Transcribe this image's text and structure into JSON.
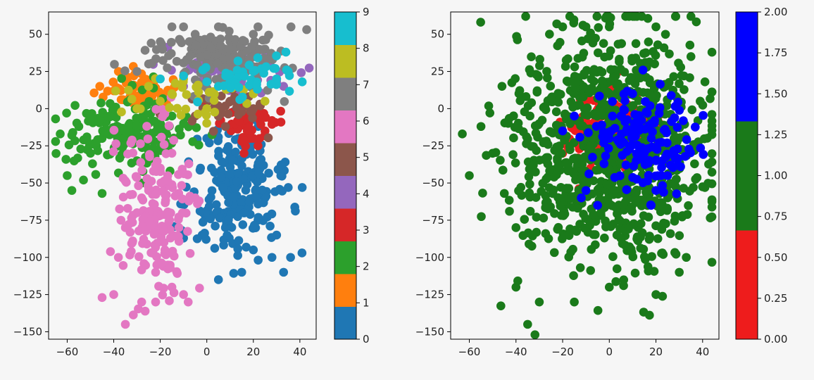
{
  "chart_data": [
    {
      "type": "scatter",
      "title": "",
      "xlabel": "",
      "ylabel": "",
      "xlim": [
        -68,
        47
      ],
      "ylim": [
        -155,
        65
      ],
      "x_ticks": [
        -60,
        -40,
        -20,
        0,
        20,
        40
      ],
      "y_ticks": [
        50,
        25,
        0,
        -25,
        -50,
        -75,
        -100,
        -125,
        -150
      ],
      "grid": false,
      "color_by": "cluster label",
      "colorbar": {
        "range": [
          0,
          9
        ],
        "ticks": [
          0,
          1,
          2,
          3,
          4,
          5,
          6,
          7,
          8,
          9
        ],
        "colors": [
          "#1f77b4",
          "#ff7f0e",
          "#2ca02c",
          "#d62728",
          "#9467bd",
          "#8c564b",
          "#e377c2",
          "#7f7f7f",
          "#bcbd22",
          "#17becf"
        ]
      },
      "series": [
        {
          "label": 0,
          "color": "#1f77b4",
          "center": [
            12,
            -55
          ],
          "spread": [
            10,
            22
          ],
          "approx_points": 230,
          "sample_points": [
            [
              0,
              -20
            ],
            [
              10,
              -30
            ],
            [
              20,
              -45
            ],
            [
              25,
              -60
            ],
            [
              35,
              -53
            ],
            [
              41,
              -53
            ],
            [
              30,
              -85
            ],
            [
              20,
              -95
            ],
            [
              15,
              -110
            ],
            [
              5,
              -115
            ],
            [
              8,
              -80
            ],
            [
              -2,
              -85
            ],
            [
              -10,
              -87
            ],
            [
              -5,
              -60
            ],
            [
              2,
              -40
            ],
            [
              10,
              -70
            ],
            [
              22,
              -75
            ],
            [
              28,
              -100
            ],
            [
              36,
              -100
            ],
            [
              33,
              -110
            ]
          ]
        },
        {
          "label": 1,
          "color": "#ff7f0e",
          "center": [
            -30,
            12
          ],
          "spread": [
            8,
            6
          ],
          "approx_points": 70,
          "sample_points": [
            [
              -46,
              15
            ],
            [
              -40,
              12
            ],
            [
              -35,
              20
            ],
            [
              -30,
              15
            ],
            [
              -25,
              10
            ],
            [
              -38,
              25
            ],
            [
              -20,
              5
            ],
            [
              -28,
              3
            ],
            [
              -33,
              8
            ],
            [
              -22,
              14
            ]
          ]
        },
        {
          "label": 2,
          "color": "#2ca02c",
          "center": [
            -35,
            -15
          ],
          "spread": [
            14,
            12
          ],
          "approx_points": 180,
          "sample_points": [
            [
              -63,
              -17
            ],
            [
              -55,
              -12
            ],
            [
              -60,
              -45
            ],
            [
              -50,
              -30
            ],
            [
              -45,
              -20
            ],
            [
              -40,
              -5
            ],
            [
              -35,
              -20
            ],
            [
              -30,
              -35
            ],
            [
              -25,
              -10
            ],
            [
              -20,
              -15
            ],
            [
              -15,
              -5
            ],
            [
              -10,
              -10
            ],
            [
              -53,
              -48
            ],
            [
              -58,
              -55
            ],
            [
              -45,
              -57
            ],
            [
              -38,
              -25
            ],
            [
              -28,
              -50
            ],
            [
              -22,
              0
            ]
          ]
        },
        {
          "label": 3,
          "color": "#d62728",
          "center": [
            18,
            -10
          ],
          "spread": [
            6,
            8
          ],
          "approx_points": 60,
          "sample_points": [
            [
              15,
              -5
            ],
            [
              20,
              -20
            ],
            [
              25,
              -15
            ],
            [
              18,
              -10
            ],
            [
              22,
              -25
            ],
            [
              12,
              -12
            ],
            [
              28,
              -8
            ],
            [
              16,
              -30
            ]
          ]
        },
        {
          "label": 4,
          "color": "#9467bd",
          "center": [
            10,
            25
          ],
          "spread": [
            12,
            8
          ],
          "approx_points": 70,
          "sample_points": [
            [
              0,
              25
            ],
            [
              5,
              20
            ],
            [
              10,
              30
            ],
            [
              15,
              15
            ],
            [
              20,
              25
            ],
            [
              25,
              35
            ],
            [
              30,
              20
            ],
            [
              -5,
              30
            ],
            [
              -10,
              15
            ],
            [
              33,
              15
            ]
          ]
        },
        {
          "label": 5,
          "color": "#8c564b",
          "center": [
            10,
            0
          ],
          "spread": [
            10,
            8
          ],
          "approx_points": 40,
          "sample_points": [
            [
              0,
              0
            ],
            [
              5,
              -5
            ],
            [
              10,
              5
            ],
            [
              15,
              -2
            ],
            [
              20,
              0
            ],
            [
              -5,
              -5
            ],
            [
              8,
              -12
            ],
            [
              18,
              8
            ]
          ]
        },
        {
          "label": 6,
          "color": "#e377c2",
          "center": [
            -22,
            -70
          ],
          "spread": [
            8,
            30
          ],
          "approx_points": 200,
          "sample_points": [
            [
              -15,
              -30
            ],
            [
              -20,
              -40
            ],
            [
              -25,
              -55
            ],
            [
              -30,
              -70
            ],
            [
              -35,
              -80
            ],
            [
              -38,
              -100
            ],
            [
              -40,
              -125
            ],
            [
              -45,
              -127
            ],
            [
              -35,
              -145
            ],
            [
              -28,
              -130
            ],
            [
              -22,
              -130
            ],
            [
              -15,
              -120
            ],
            [
              -10,
              -125
            ],
            [
              -8,
              -130
            ],
            [
              -18,
              -95
            ],
            [
              -12,
              -80
            ],
            [
              -5,
              -60
            ],
            [
              -28,
              -60
            ],
            [
              -32,
              -90
            ],
            [
              -22,
              -110
            ]
          ]
        },
        {
          "label": 7,
          "color": "#7f7f7f",
          "center": [
            5,
            35
          ],
          "spread": [
            14,
            10
          ],
          "approx_points": 180,
          "sample_points": [
            [
              -20,
              45
            ],
            [
              -15,
              55
            ],
            [
              -10,
              55
            ],
            [
              -5,
              50
            ],
            [
              0,
              40
            ],
            [
              5,
              55
            ],
            [
              10,
              45
            ],
            [
              15,
              35
            ],
            [
              20,
              50
            ],
            [
              25,
              40
            ],
            [
              -25,
              30
            ],
            [
              -30,
              25
            ],
            [
              22,
              55
            ],
            [
              10,
              25
            ],
            [
              0,
              30
            ]
          ]
        },
        {
          "label": 8,
          "color": "#bcbd22",
          "center": [
            -10,
            8
          ],
          "spread": [
            15,
            10
          ],
          "approx_points": 40,
          "sample_points": [
            [
              -30,
              0
            ],
            [
              -25,
              15
            ],
            [
              -20,
              5
            ],
            [
              -15,
              10
            ],
            [
              -10,
              20
            ],
            [
              0,
              0
            ],
            [
              20,
              10
            ],
            [
              25,
              5
            ]
          ]
        },
        {
          "label": 9,
          "color": "#17becf",
          "center": [
            15,
            20
          ],
          "spread": [
            12,
            8
          ],
          "approx_points": 50,
          "sample_points": [
            [
              -20,
              20
            ],
            [
              -10,
              22
            ],
            [
              0,
              18
            ],
            [
              10,
              20
            ],
            [
              20,
              25
            ],
            [
              30,
              20
            ],
            [
              34,
              38
            ],
            [
              41,
              18
            ],
            [
              35,
              25
            ],
            [
              5,
              15
            ]
          ]
        }
      ]
    },
    {
      "type": "scatter",
      "title": "",
      "xlabel": "",
      "ylabel": "",
      "xlim": [
        -68,
        47
      ],
      "ylim": [
        -155,
        65
      ],
      "x_ticks": [
        -60,
        -40,
        -20,
        0,
        20,
        40
      ],
      "y_ticks": [
        50,
        25,
        0,
        -25,
        -50,
        -75,
        -100,
        -125,
        -150
      ],
      "grid": false,
      "color_by": "class value",
      "colorbar": {
        "range": [
          0.0,
          2.0
        ],
        "ticks": [
          "0.00",
          "0.25",
          "0.50",
          "0.75",
          "1.00",
          "1.25",
          "1.50",
          "1.75",
          "2.00"
        ],
        "colors": [
          "#ee1c1c",
          "#1a7a1a",
          "#0000ff"
        ]
      },
      "series": [
        {
          "label": 0,
          "color": "#ee1c1c",
          "center": [
            0,
            -15
          ],
          "spread": [
            9,
            12
          ],
          "approx_points": 180,
          "sample_points": [
            [
              -20,
              -30
            ],
            [
              -15,
              -10
            ],
            [
              -10,
              0
            ],
            [
              -5,
              5
            ],
            [
              0,
              -20
            ],
            [
              5,
              -10
            ],
            [
              10,
              0
            ],
            [
              15,
              -30
            ],
            [
              -8,
              -40
            ],
            [
              2,
              -35
            ],
            [
              -18,
              -25
            ],
            [
              8,
              -25
            ],
            [
              12,
              10
            ],
            [
              -3,
              -5
            ]
          ]
        },
        {
          "label": 1,
          "color": "#1a7a1a",
          "center": [
            0,
            -25
          ],
          "spread": [
            22,
            40
          ],
          "approx_points": 900,
          "sample_points": [
            [
              -63,
              -17
            ],
            [
              -60,
              -45
            ],
            [
              -55,
              -12
            ],
            [
              -45,
              -57
            ],
            [
              -40,
              -120
            ],
            [
              -35,
              -145
            ],
            [
              -30,
              -130
            ],
            [
              -20,
              55
            ],
            [
              -10,
              55
            ],
            [
              0,
              55
            ],
            [
              20,
              55
            ],
            [
              35,
              35
            ],
            [
              41,
              18
            ],
            [
              30,
              -110
            ],
            [
              20,
              -125
            ],
            [
              0,
              -120
            ],
            [
              -15,
              -130
            ],
            [
              -40,
              -80
            ],
            [
              -50,
              -30
            ],
            [
              -46,
              15
            ],
            [
              25,
              -60
            ],
            [
              36,
              -53
            ],
            [
              41,
              -53
            ],
            [
              33,
              -100
            ]
          ]
        },
        {
          "label": 2,
          "color": "#0000ff",
          "center": [
            15,
            -25
          ],
          "spread": [
            10,
            20
          ],
          "approx_points": 150,
          "sample_points": [
            [
              -20,
              -15
            ],
            [
              -15,
              -5
            ],
            [
              -10,
              -55
            ],
            [
              -5,
              -65
            ],
            [
              0,
              -20
            ],
            [
              5,
              -5
            ],
            [
              10,
              10
            ],
            [
              15,
              -30
            ],
            [
              20,
              -35
            ],
            [
              25,
              -45
            ],
            [
              20,
              -55
            ],
            [
              18,
              -20
            ],
            [
              -12,
              -60
            ]
          ]
        }
      ]
    }
  ]
}
